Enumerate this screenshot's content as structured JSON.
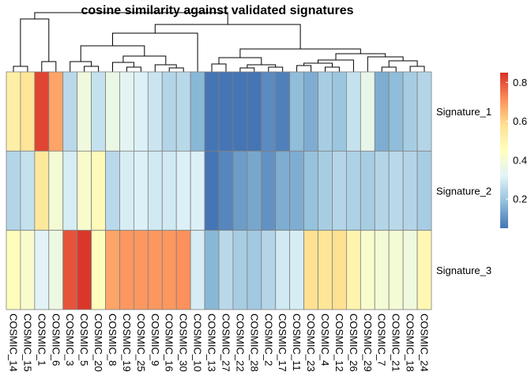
{
  "chart_data": {
    "type": "heatmap",
    "title": "cosine similarity against validated signatures",
    "columns": [
      "COSMIC_14",
      "COSMIC_15",
      "COSMIC_1",
      "COSMIC_6",
      "COSMIC_3",
      "COSMIC_5",
      "COSMIC_20",
      "COSMIC_8",
      "COSMIC_19",
      "COSMIC_25",
      "COSMIC_9",
      "COSMIC_16",
      "COSMIC_30",
      "COSMIC_10",
      "COSMIC_13",
      "COSMIC_27",
      "COSMIC_22",
      "COSMIC_28",
      "COSMIC_2",
      "COSMIC_17",
      "COSMIC_11",
      "COSMIC_23",
      "COSMIC_4",
      "COSMIC_12",
      "COSMIC_26",
      "COSMIC_29",
      "COSMIC_7",
      "COSMIC_21",
      "COSMIC_18",
      "COSMIC_24"
    ],
    "rows": [
      "Signature_1",
      "Signature_2",
      "Signature_3"
    ],
    "values": [
      [
        0.52,
        0.56,
        0.82,
        0.68,
        0.25,
        0.38,
        0.27,
        0.36,
        0.33,
        0.31,
        0.28,
        0.24,
        0.25,
        0.17,
        0.05,
        0.05,
        0.05,
        0.05,
        0.09,
        0.07,
        0.18,
        0.15,
        0.22,
        0.2,
        0.27,
        0.35,
        0.15,
        0.18,
        0.22,
        0.24
      ],
      [
        0.24,
        0.27,
        0.55,
        0.4,
        0.3,
        0.42,
        0.47,
        0.25,
        0.3,
        0.31,
        0.29,
        0.29,
        0.31,
        0.31,
        0.05,
        0.08,
        0.12,
        0.14,
        0.1,
        0.15,
        0.15,
        0.19,
        0.22,
        0.24,
        0.23,
        0.22,
        0.24,
        0.25,
        0.24,
        0.22
      ],
      [
        0.46,
        0.42,
        0.32,
        0.37,
        0.8,
        0.84,
        0.46,
        0.68,
        0.7,
        0.7,
        0.7,
        0.7,
        0.71,
        0.3,
        0.17,
        0.25,
        0.22,
        0.21,
        0.24,
        0.29,
        0.3,
        0.58,
        0.56,
        0.58,
        0.5,
        0.42,
        0.4,
        0.4,
        0.38,
        0.48
      ]
    ],
    "colorbar": {
      "min": 0.05,
      "max": 0.85,
      "ticks": [
        0.2,
        0.4,
        0.6,
        0.8
      ],
      "tick_labels": [
        "0.2",
        "0.4",
        "0.6",
        "0.8"
      ]
    },
    "palette": [
      "#4575b4",
      "#91bfdb",
      "#e0f3f8",
      "#ffffbf",
      "#fee090",
      "#fc8d59",
      "#d73027"
    ],
    "cell_border_color": "#808080",
    "dendrogram_color": "#000000",
    "grid": false,
    "legend_placement": "right"
  }
}
